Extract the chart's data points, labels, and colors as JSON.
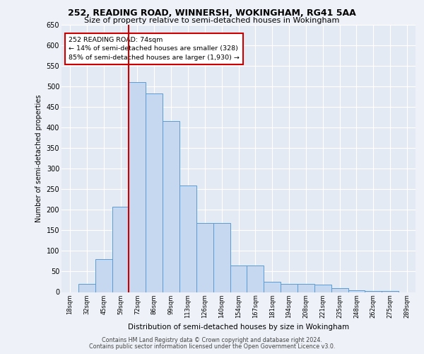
{
  "title1": "252, READING ROAD, WINNERSH, WOKINGHAM, RG41 5AA",
  "title2": "Size of property relative to semi-detached houses in Wokingham",
  "xlabel": "Distribution of semi-detached houses by size in Wokingham",
  "ylabel": "Number of semi-detached properties",
  "categories": [
    "18sqm",
    "32sqm",
    "45sqm",
    "59sqm",
    "72sqm",
    "86sqm",
    "99sqm",
    "113sqm",
    "126sqm",
    "140sqm",
    "154sqm",
    "167sqm",
    "181sqm",
    "194sqm",
    "208sqm",
    "221sqm",
    "235sqm",
    "248sqm",
    "262sqm",
    "275sqm",
    "289sqm"
  ],
  "values": [
    0,
    20,
    80,
    207,
    510,
    483,
    415,
    260,
    168,
    168,
    65,
    65,
    25,
    20,
    20,
    18,
    10,
    5,
    3,
    2,
    0
  ],
  "bar_color": "#c5d8f0",
  "bar_edge_color": "#5b9bd5",
  "highlight_color": "#cc0000",
  "annotation_text": "252 READING ROAD: 74sqm\n← 14% of semi-detached houses are smaller (328)\n85% of semi-detached houses are larger (1,930) →",
  "annotation_box_color": "#cc0000",
  "ylim": [
    0,
    650
  ],
  "yticks": [
    0,
    50,
    100,
    150,
    200,
    250,
    300,
    350,
    400,
    450,
    500,
    550,
    600,
    650
  ],
  "footer1": "Contains HM Land Registry data © Crown copyright and database right 2024.",
  "footer2": "Contains public sector information licensed under the Open Government Licence v3.0.",
  "bg_color": "#eef2f8",
  "plot_bg_color": "#e4eaf4"
}
